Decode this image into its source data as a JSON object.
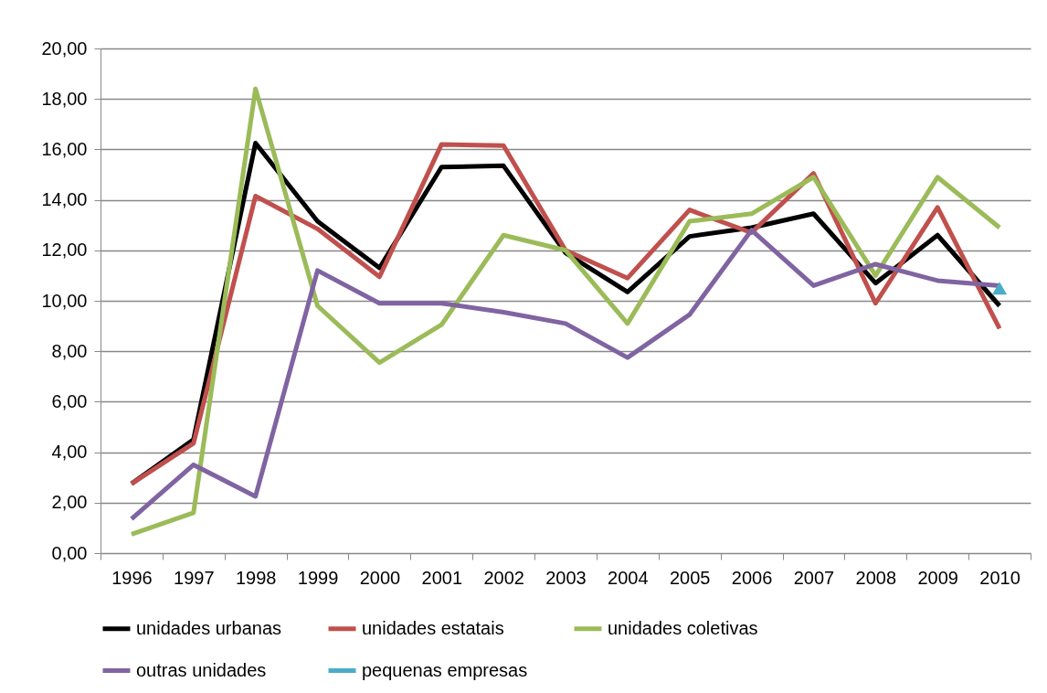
{
  "chart_data": {
    "type": "line",
    "categories": [
      "1996",
      "1997",
      "1998",
      "1999",
      "2000",
      "2001",
      "2002",
      "2003",
      "2004",
      "2005",
      "2006",
      "2007",
      "2008",
      "2009",
      "2010"
    ],
    "series": [
      {
        "name": "unidades urbanas",
        "color": "#000000",
        "values": [
          2.75,
          4.5,
          16.25,
          13.15,
          11.3,
          15.3,
          15.35,
          11.9,
          10.35,
          12.55,
          12.9,
          13.45,
          10.7,
          12.6,
          9.8
        ]
      },
      {
        "name": "unidades estatais",
        "color": "#c0504d",
        "values": [
          2.75,
          4.35,
          14.15,
          12.85,
          10.95,
          16.2,
          16.15,
          12.0,
          10.9,
          13.6,
          12.7,
          15.05,
          9.9,
          13.7,
          8.9
        ]
      },
      {
        "name": "unidades coletivas",
        "color": "#9bbb59",
        "values": [
          0.75,
          1.6,
          18.4,
          9.8,
          7.55,
          9.05,
          12.6,
          12.0,
          9.1,
          13.15,
          13.45,
          14.9,
          11.0,
          14.9,
          12.9
        ]
      },
      {
        "name": "outras unidades",
        "color": "#8064a2",
        "values": [
          1.35,
          3.5,
          2.25,
          11.2,
          9.9,
          9.9,
          9.55,
          9.1,
          7.75,
          9.45,
          12.8,
          10.6,
          11.45,
          10.8,
          10.6
        ]
      },
      {
        "name": "pequenas empresas",
        "color": "#4bacc6",
        "marker": "triangle",
        "values": [
          null,
          null,
          null,
          null,
          null,
          null,
          null,
          null,
          null,
          null,
          null,
          null,
          null,
          null,
          10.5
        ]
      }
    ],
    "ylim": [
      0,
      20
    ],
    "yticks": [
      {
        "value": 0,
        "label": "0,00"
      },
      {
        "value": 2,
        "label": "2,00"
      },
      {
        "value": 4,
        "label": "4,00"
      },
      {
        "value": 6,
        "label": "6,00"
      },
      {
        "value": 8,
        "label": "8,00"
      },
      {
        "value": 10,
        "label": "10,00"
      },
      {
        "value": 12,
        "label": "12,00"
      },
      {
        "value": 14,
        "label": "14,00"
      },
      {
        "value": 16,
        "label": "16,00"
      },
      {
        "value": 18,
        "label": "18,00"
      },
      {
        "value": 20,
        "label": "20,00"
      }
    ],
    "grid": "y",
    "legend": "bottom",
    "line_style": "solid"
  }
}
